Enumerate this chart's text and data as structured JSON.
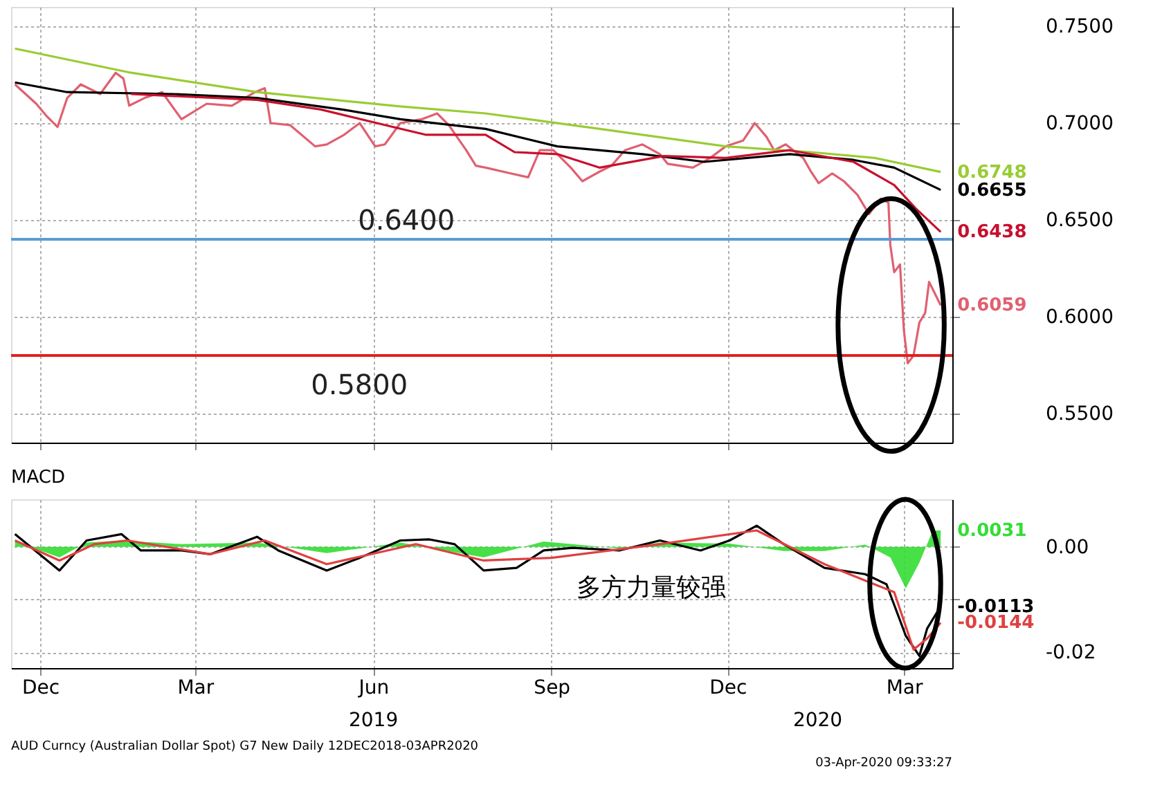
{
  "chart_data": [
    {
      "type": "line",
      "xlim": [
        "2018-12-10",
        "2020-04-09"
      ],
      "xticks": [
        {
          "value": "2018-12-25",
          "label": null
        },
        {
          "value": "2019-03-15",
          "label": null
        },
        {
          "value": "2019-06-15",
          "label": null
        },
        {
          "value": "2019-09-15",
          "label": null
        },
        {
          "value": "2019-12-15",
          "label": null
        },
        {
          "value": "2020-03-15",
          "label": null
        }
      ],
      "ylim": [
        0.535,
        0.76
      ],
      "yticks": [
        {
          "value": 0.55,
          "label": "0.5500"
        },
        {
          "value": 0.6,
          "label": "0.6000"
        },
        {
          "value": 0.65,
          "label": "0.6500"
        },
        {
          "value": 0.7,
          "label": "0.7000"
        },
        {
          "value": 0.75,
          "label": "0.7500"
        }
      ],
      "grid": true,
      "tick_labels": "y",
      "line_style": "solid",
      "marker": "none",
      "ref_lines": [
        {
          "axis": "y",
          "value": 0.64,
          "label": "0.6400",
          "color": "#5b9bd5"
        },
        {
          "axis": "y",
          "value": 0.58,
          "label": "0.5800",
          "color": "#e02020"
        }
      ],
      "series": [
        {
          "color": "#e06070",
          "x": [
            "2018-12-12",
            "2018-12-23",
            "2018-12-28",
            "2019-01-03",
            "2019-01-08",
            "2019-01-15",
            "2019-01-25",
            "2019-02-02",
            "2019-02-06",
            "2019-02-09",
            "2019-02-17",
            "2019-02-26",
            "2019-03-08",
            "2019-03-21",
            "2019-04-03",
            "2019-04-15",
            "2019-04-20",
            "2019-04-23",
            "2019-05-03",
            "2019-05-16",
            "2019-05-22",
            "2019-05-31",
            "2019-06-08",
            "2019-06-16",
            "2019-06-21",
            "2019-06-29",
            "2019-07-10",
            "2019-07-18",
            "2019-07-24",
            "2019-08-02",
            "2019-08-07",
            "2019-08-12",
            "2019-08-25",
            "2019-09-03",
            "2019-09-09",
            "2019-09-16",
            "2019-09-25",
            "2019-10-01",
            "2019-10-10",
            "2019-10-16",
            "2019-10-23",
            "2019-11-01",
            "2019-11-10",
            "2019-11-14",
            "2019-11-27",
            "2019-12-06",
            "2019-12-14",
            "2019-12-23",
            "2019-12-29",
            "2020-01-04",
            "2020-01-08",
            "2020-01-14",
            "2020-01-23",
            "2020-01-27",
            "2020-01-31",
            "2020-02-07",
            "2020-02-13",
            "2020-02-20",
            "2020-02-26",
            "2020-03-03",
            "2020-03-07",
            "2020-03-08",
            "2020-03-10",
            "2020-03-13",
            "2020-03-15",
            "2020-03-17",
            "2020-03-20",
            "2020-03-23",
            "2020-03-26",
            "2020-03-28",
            "2020-03-30",
            "2020-04-03"
          ],
          "values": [
            0.72,
            0.71,
            0.704,
            0.698,
            0.713,
            0.72,
            0.715,
            0.726,
            0.723,
            0.709,
            0.713,
            0.716,
            0.702,
            0.71,
            0.709,
            0.716,
            0.718,
            0.7,
            0.699,
            0.688,
            0.689,
            0.694,
            0.7,
            0.688,
            0.689,
            0.7,
            0.702,
            0.705,
            0.699,
            0.686,
            0.678,
            0.677,
            0.674,
            0.672,
            0.686,
            0.686,
            0.677,
            0.67,
            0.675,
            0.678,
            0.686,
            0.689,
            0.684,
            0.679,
            0.677,
            0.682,
            0.688,
            0.691,
            0.7,
            0.693,
            0.686,
            0.689,
            0.682,
            0.675,
            0.669,
            0.674,
            0.67,
            0.663,
            0.653,
            0.661,
            0.659,
            0.637,
            0.623,
            0.627,
            0.593,
            0.576,
            0.58,
            0.597,
            0.602,
            0.618,
            0.614,
            0.6059
          ],
          "value_labels": [
            null,
            null,
            null,
            null,
            null,
            null,
            null,
            null,
            null,
            null,
            null,
            null,
            null,
            null,
            null,
            null,
            null,
            null,
            null,
            null,
            null,
            null,
            null,
            null,
            null,
            null,
            null,
            null,
            null,
            null,
            null,
            null,
            null,
            null,
            null,
            null,
            null,
            null,
            null,
            null,
            null,
            null,
            null,
            null,
            null,
            null,
            null,
            null,
            null,
            null,
            null,
            null,
            null,
            null,
            null,
            null,
            null,
            null,
            null,
            null,
            null,
            null,
            null,
            null,
            null,
            null,
            null,
            null,
            null,
            null,
            null,
            "0.6059"
          ]
        },
        {
          "color": "#99cc33",
          "x": [
            "2018-12-12",
            "2019-02-10",
            "2019-04-16",
            "2019-06-29",
            "2019-08-12",
            "2019-10-10",
            "2019-12-14",
            "2020-01-27",
            "2020-02-29",
            "2020-04-03"
          ],
          "values": [
            0.7385,
            0.726,
            0.716,
            0.7086,
            0.705,
            0.697,
            0.688,
            0.685,
            0.682,
            0.6748
          ],
          "value_labels": [
            null,
            null,
            null,
            null,
            null,
            null,
            null,
            null,
            null,
            "0.6748"
          ]
        },
        {
          "color": "#000000",
          "x": [
            "2018-12-12",
            "2019-01-08",
            "2019-03-04",
            "2019-04-16",
            "2019-05-30",
            "2019-06-29",
            "2019-08-12",
            "2019-09-18",
            "2019-11-01",
            "2019-12-03",
            "2020-01-16",
            "2020-02-18",
            "2020-03-10",
            "2020-04-03"
          ],
          "values": [
            0.721,
            0.716,
            0.715,
            0.713,
            0.707,
            0.702,
            0.697,
            0.688,
            0.684,
            0.68,
            0.684,
            0.681,
            0.677,
            0.6655
          ],
          "value_labels": [
            null,
            null,
            null,
            null,
            null,
            null,
            null,
            null,
            null,
            null,
            null,
            null,
            null,
            "0.6655"
          ]
        },
        {
          "color": "#c8102e",
          "x": [
            "2019-02-10",
            "2019-04-16",
            "2019-05-19",
            "2019-06-21",
            "2019-07-12",
            "2019-08-12",
            "2019-08-27",
            "2019-09-18",
            "2019-10-10",
            "2019-11-12",
            "2019-12-14",
            "2020-01-16",
            "2020-02-18",
            "2020-03-10",
            "2020-03-21",
            "2020-04-03"
          ],
          "values": [
            0.715,
            0.712,
            0.707,
            0.699,
            0.694,
            0.694,
            0.685,
            0.684,
            0.677,
            0.683,
            0.682,
            0.686,
            0.68,
            0.668,
            0.656,
            0.6438
          ],
          "value_labels": [
            null,
            null,
            null,
            null,
            null,
            null,
            null,
            null,
            null,
            null,
            null,
            null,
            null,
            null,
            null,
            "0.6438"
          ]
        }
      ]
    },
    {
      "type": "line",
      "title": "MACD",
      "xlim": [
        "2018-12-10",
        "2020-04-09"
      ],
      "xticks": [
        {
          "value": "2018-12-25",
          "label": "Dec"
        },
        {
          "value": "2019-03-15",
          "label": "Mar"
        },
        {
          "value": "2019-06-15",
          "label": "Jun"
        },
        {
          "value": "2019-09-15",
          "label": "Sep"
        },
        {
          "value": "2019-12-15",
          "label": "Dec"
        },
        {
          "value": "2020-03-15",
          "label": "Mar"
        }
      ],
      "ylim": [
        -0.023,
        0.009
      ],
      "yticks": [
        {
          "value": 0,
          "label": "0.00"
        },
        {
          "value": -0.01,
          "label": null
        },
        {
          "value": -0.02,
          "label": "-0.02"
        }
      ],
      "grid": true,
      "line_style": "solid",
      "marker": "none",
      "annotations": [
        "多方力量较强",
        "2019",
        "2020",
        "AUD Curncy (Australian Dollar Spot) G7 New  Daily 12DEC2018-03APR2020",
        "03-Apr-2020 09:33:27"
      ],
      "series": [
        {
          "type": "area",
          "color": "#33dd33",
          "x": [
            "2018-12-12",
            "2019-01-04",
            "2019-01-18",
            "2019-02-05",
            "2019-03-08",
            "2019-04-16",
            "2019-05-22",
            "2019-06-29",
            "2019-08-11",
            "2019-09-11",
            "2019-10-20",
            "2019-11-10",
            "2019-12-16",
            "2020-01-13",
            "2020-02-03",
            "2020-02-24",
            "2020-03-08",
            "2020-03-16",
            "2020-03-23",
            "2020-03-27",
            "2020-03-30",
            "2020-04-03"
          ],
          "values": [
            0.001,
            -0.002,
            0.0008,
            0.0012,
            0.0005,
            0.0008,
            -0.0012,
            0.0008,
            -0.002,
            0.001,
            -0.0003,
            0.0008,
            0.0006,
            -0.0008,
            -0.0008,
            0.0004,
            -0.002,
            -0.0079,
            -0.003,
            0.0005,
            0.0031,
            0.0031
          ],
          "value_labels": [
            null,
            null,
            null,
            null,
            null,
            null,
            null,
            null,
            null,
            null,
            null,
            null,
            null,
            null,
            null,
            null,
            null,
            null,
            null,
            null,
            null,
            "0.0031"
          ]
        },
        {
          "color": "#000000",
          "x": [
            "2018-12-12",
            "2019-01-04",
            "2019-01-18",
            "2019-02-05",
            "2019-02-15",
            "2019-03-08",
            "2019-03-23",
            "2019-04-16",
            "2019-04-27",
            "2019-05-22",
            "2019-06-08",
            "2019-06-29",
            "2019-07-14",
            "2019-07-27",
            "2019-08-11",
            "2019-08-28",
            "2019-09-11",
            "2019-09-26",
            "2019-10-20",
            "2019-11-10",
            "2019-12-01",
            "2019-12-16",
            "2019-12-30",
            "2020-01-13",
            "2020-02-03",
            "2020-02-24",
            "2020-03-06",
            "2020-03-16",
            "2020-03-23",
            "2020-03-27",
            "2020-04-03"
          ],
          "values": [
            0.0024,
            -0.0045,
            0.0012,
            0.0024,
            -0.0007,
            -0.0007,
            -0.0014,
            0.0019,
            -0.0007,
            -0.0045,
            -0.0021,
            0.0012,
            0.0014,
            0.0005,
            -0.0045,
            -0.004,
            -0.0007,
            -0.0002,
            -0.0007,
            0.0012,
            -0.0007,
            0.0012,
            0.004,
            0.0005,
            -0.004,
            -0.0052,
            -0.0071,
            -0.0169,
            -0.0207,
            -0.0155,
            -0.0113
          ],
          "value_labels": [
            null,
            null,
            null,
            null,
            null,
            null,
            null,
            null,
            null,
            null,
            null,
            null,
            null,
            null,
            null,
            null,
            null,
            null,
            null,
            null,
            null,
            null,
            null,
            null,
            null,
            null,
            null,
            null,
            null,
            null,
            "-0.0113"
          ]
        },
        {
          "color": "#e04040",
          "x": [
            "2018-12-12",
            "2019-01-04",
            "2019-01-22",
            "2019-02-08",
            "2019-03-23",
            "2019-04-20",
            "2019-05-22",
            "2019-07-07",
            "2019-08-11",
            "2019-09-15",
            "2019-11-10",
            "2019-12-30",
            "2020-02-03",
            "2020-03-10",
            "2020-03-20",
            "2020-03-27",
            "2020-04-03"
          ],
          "values": [
            0.0012,
            -0.0026,
            0.0005,
            0.0012,
            -0.0014,
            0.0012,
            -0.0033,
            0.0005,
            -0.0026,
            -0.0021,
            0.0005,
            0.0031,
            -0.0033,
            -0.0086,
            -0.0195,
            -0.0174,
            -0.0144
          ],
          "value_labels": [
            null,
            null,
            null,
            null,
            null,
            null,
            null,
            null,
            null,
            null,
            null,
            null,
            null,
            null,
            null,
            null,
            "-0.0144"
          ]
        }
      ]
    }
  ]
}
